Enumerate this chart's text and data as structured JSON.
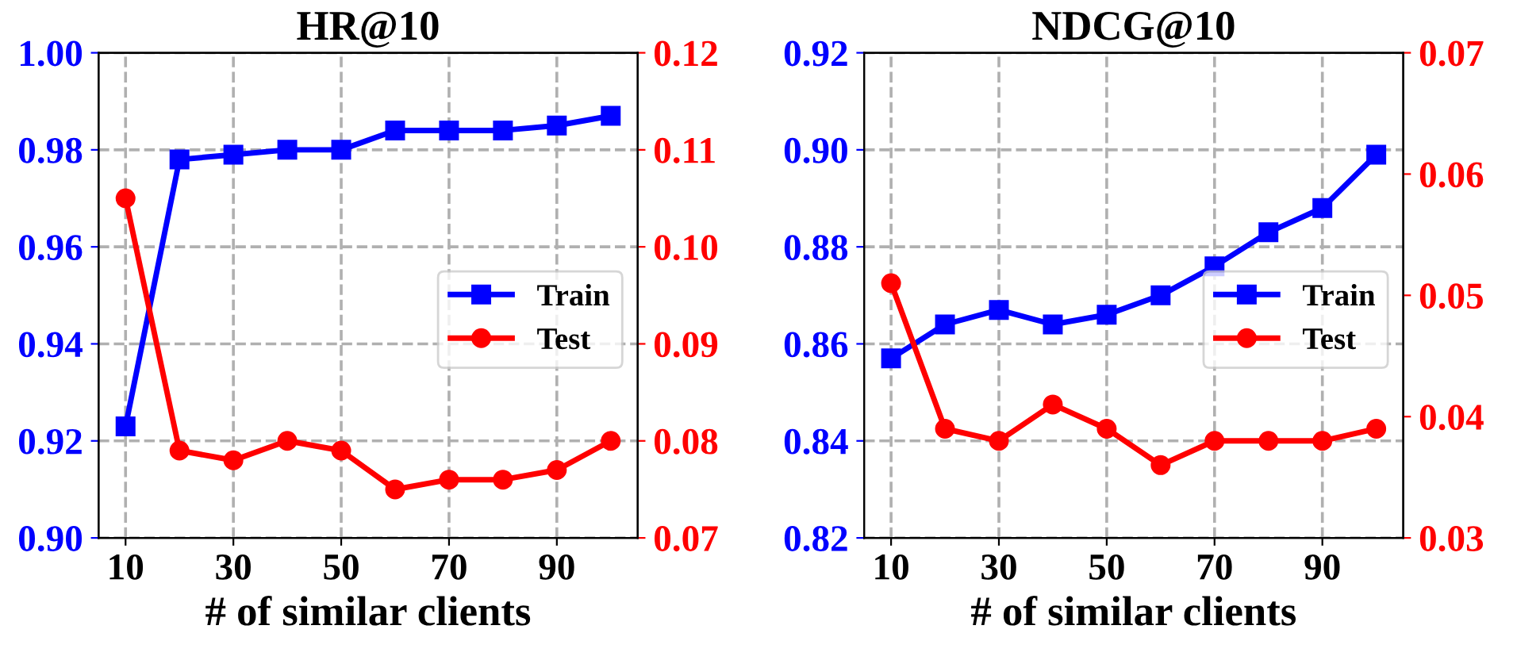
{
  "chart_data": [
    {
      "type": "line",
      "title": "HR@10",
      "xlabel": "# of similar clients",
      "x": [
        10,
        20,
        30,
        40,
        50,
        60,
        70,
        80,
        90,
        100
      ],
      "xlim": [
        5,
        105
      ],
      "xticks": [
        10,
        30,
        50,
        70,
        90
      ],
      "ylim": [
        0.9,
        1.0
      ],
      "yticks": [
        {
          "value": 0.9,
          "label": "0.90"
        },
        {
          "value": 0.92,
          "label": "0.92"
        },
        {
          "value": 0.94,
          "label": "0.94"
        },
        {
          "value": 0.96,
          "label": "0.96"
        },
        {
          "value": 0.98,
          "label": "0.98"
        },
        {
          "value": 1.0,
          "label": "1.00"
        }
      ],
      "y2lim": [
        0.07,
        0.12
      ],
      "y2ticks": [
        {
          "value": 0.07,
          "label": "0.07"
        },
        {
          "value": 0.08,
          "label": "0.08"
        },
        {
          "value": 0.09,
          "label": "0.09"
        },
        {
          "value": 0.1,
          "label": "0.10"
        },
        {
          "value": 0.11,
          "label": "0.11"
        },
        {
          "value": 0.12,
          "label": "0.12"
        }
      ],
      "grid": true,
      "legend": "right",
      "series": [
        {
          "name": "Train",
          "color": "#0000ff",
          "marker": "square",
          "values": [
            0.923,
            0.978,
            0.979,
            0.98,
            0.98,
            0.984,
            0.984,
            0.984,
            0.985,
            0.987
          ]
        },
        {
          "name": "Test",
          "color": "#ff0000",
          "marker": "circle",
          "axis": "y2",
          "values": [
            0.105,
            0.079,
            0.078,
            0.08,
            0.079,
            0.075,
            0.076,
            0.076,
            0.077,
            0.08
          ]
        }
      ]
    },
    {
      "type": "line",
      "title": "NDCG@10",
      "xlabel": "# of similar clients",
      "x": [
        10,
        20,
        30,
        40,
        50,
        60,
        70,
        80,
        90,
        100
      ],
      "xlim": [
        5,
        105
      ],
      "xticks": [
        10,
        30,
        50,
        70,
        90
      ],
      "ylim": [
        0.82,
        0.92
      ],
      "yticks": [
        {
          "value": 0.82,
          "label": "0.82"
        },
        {
          "value": 0.84,
          "label": "0.84"
        },
        {
          "value": 0.86,
          "label": "0.86"
        },
        {
          "value": 0.88,
          "label": "0.88"
        },
        {
          "value": 0.9,
          "label": "0.90"
        },
        {
          "value": 0.92,
          "label": "0.92"
        }
      ],
      "y2lim": [
        0.03,
        0.07
      ],
      "y2ticks": [
        {
          "value": 0.03,
          "label": "0.03"
        },
        {
          "value": 0.04,
          "label": "0.04"
        },
        {
          "value": 0.05,
          "label": "0.05"
        },
        {
          "value": 0.06,
          "label": "0.06"
        },
        {
          "value": 0.07,
          "label": "0.07"
        }
      ],
      "grid": true,
      "legend": "right",
      "series": [
        {
          "name": "Train",
          "color": "#0000ff",
          "marker": "square",
          "values": [
            0.857,
            0.864,
            0.867,
            0.864,
            0.866,
            0.87,
            0.876,
            0.883,
            0.888,
            0.899
          ]
        },
        {
          "name": "Test",
          "color": "#ff0000",
          "marker": "circle",
          "axis": "y2",
          "values": [
            0.051,
            0.039,
            0.038,
            0.041,
            0.039,
            0.036,
            0.038,
            0.038,
            0.038,
            0.039
          ]
        }
      ]
    }
  ]
}
